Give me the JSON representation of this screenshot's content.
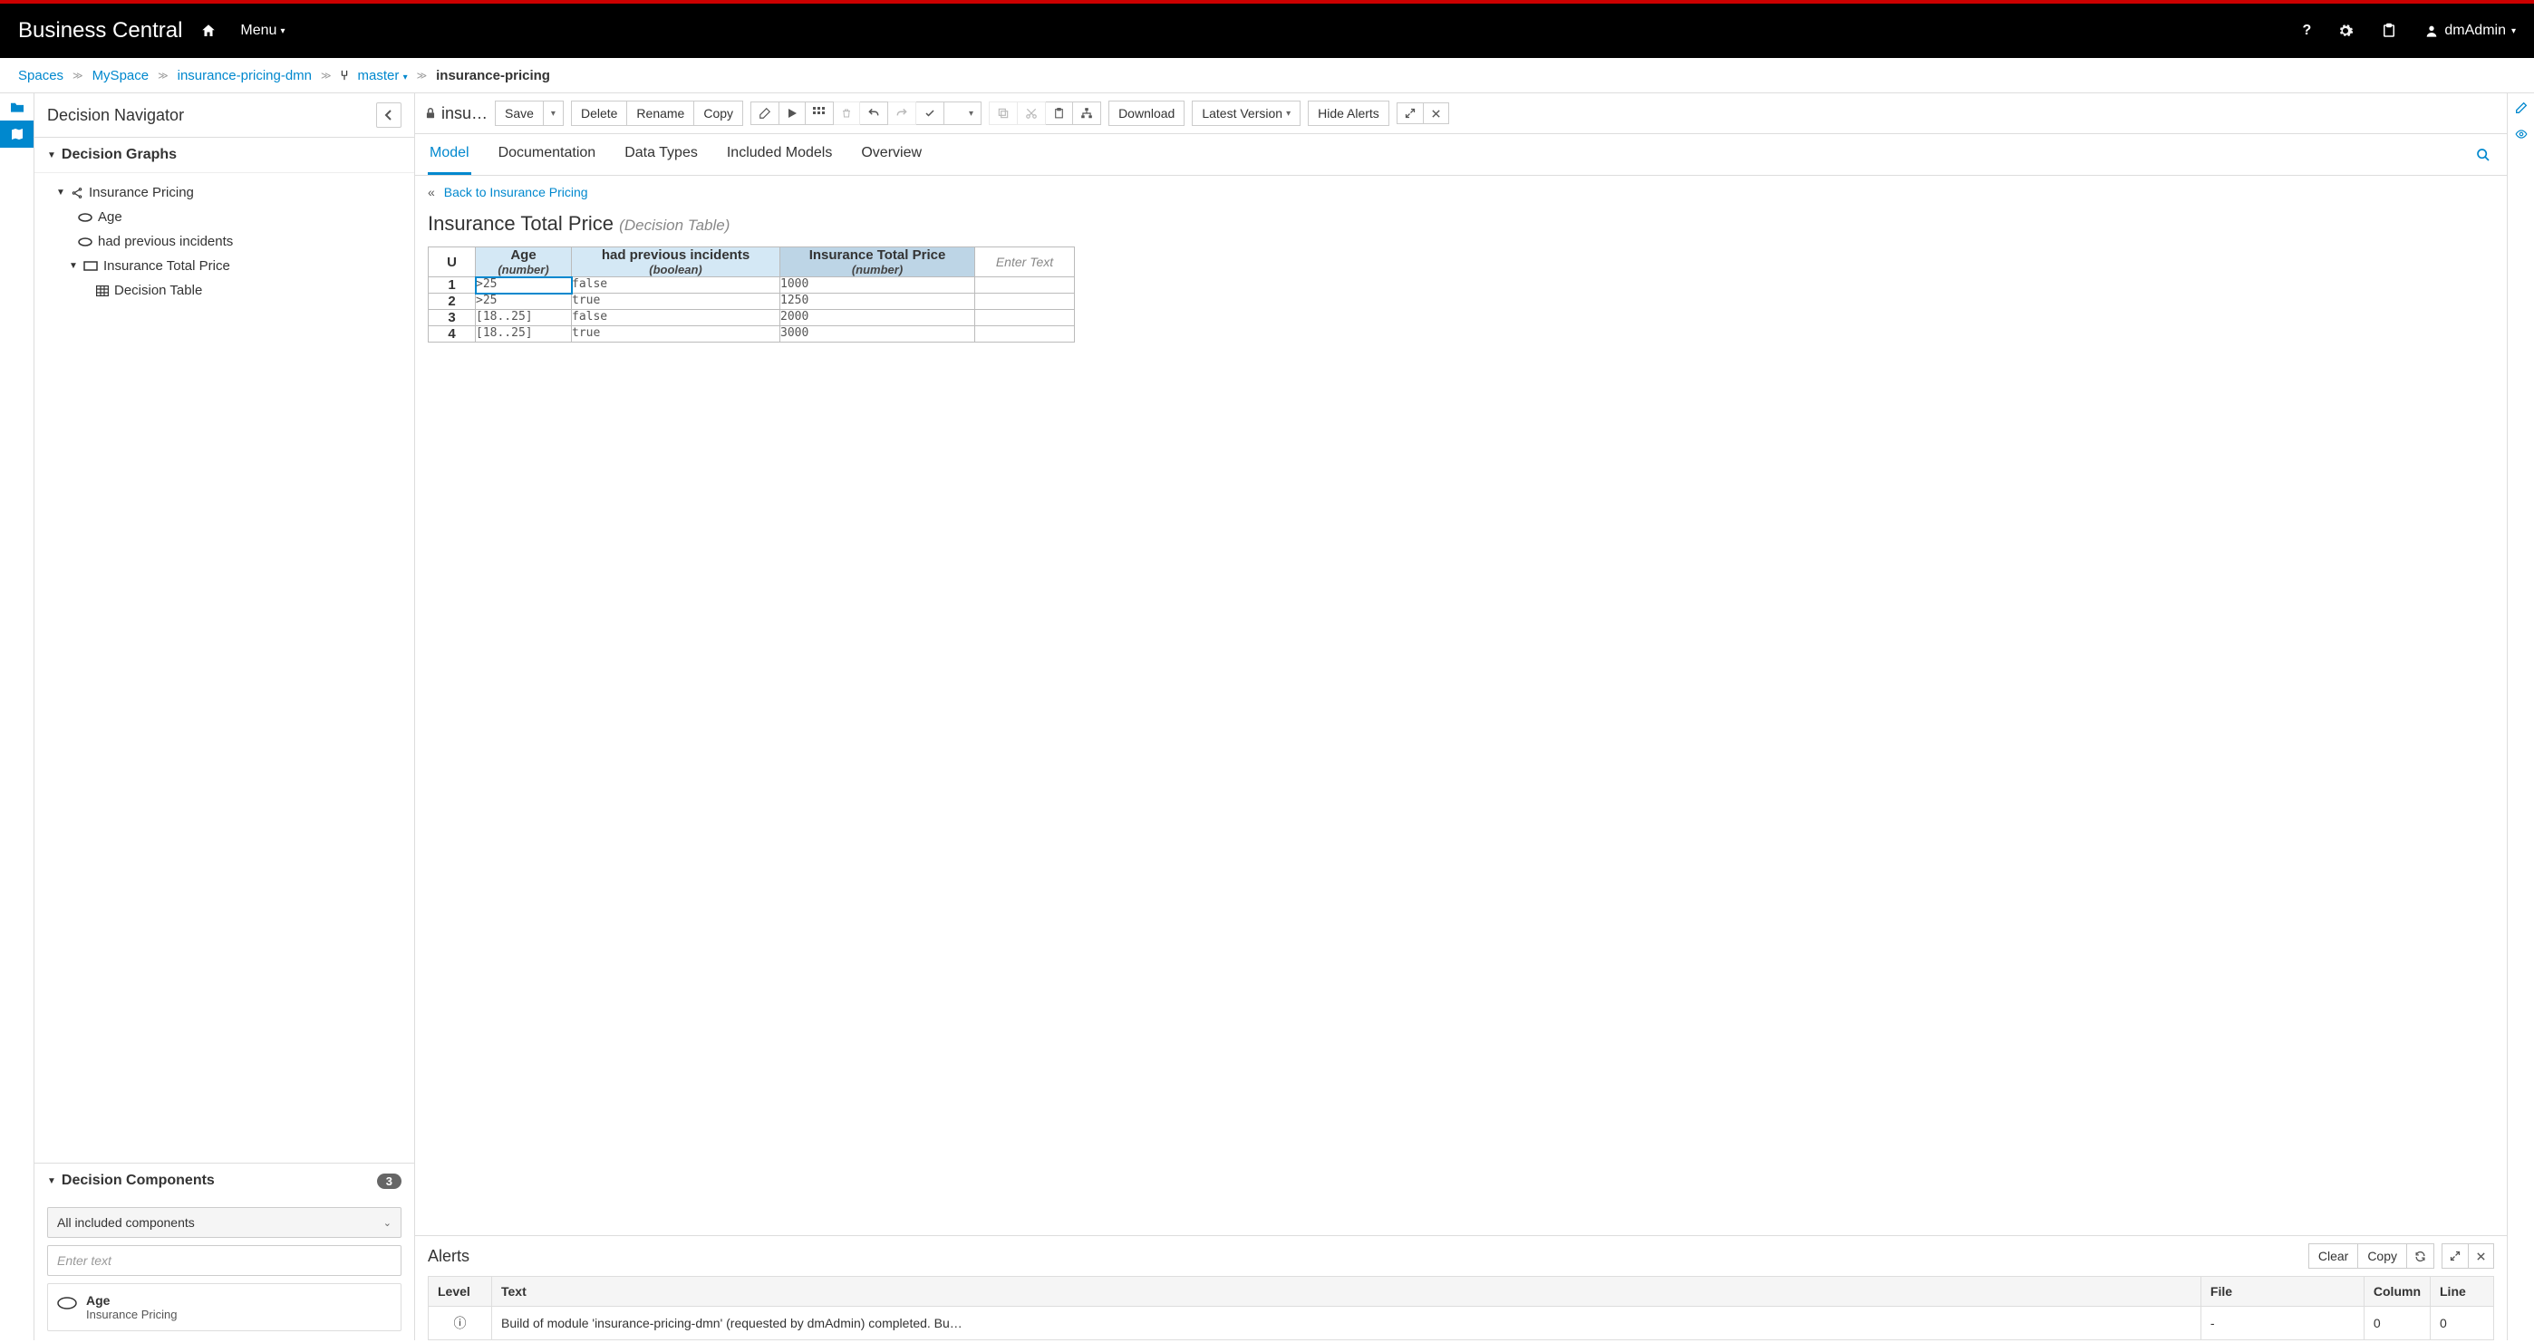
{
  "brand": "Business Central",
  "header": {
    "menu_label": "Menu",
    "user": "dmAdmin"
  },
  "breadcrumb": {
    "spaces": "Spaces",
    "space": "MySpace",
    "project": "insurance-pricing-dmn",
    "branch": "master",
    "current": "insurance-pricing"
  },
  "sidebar": {
    "title": "Decision Navigator",
    "graphs_label": "Decision Graphs",
    "tree": {
      "root": "Insurance Pricing",
      "age": "Age",
      "incidents": "had previous incidents",
      "total": "Insurance Total Price",
      "dtable": "Decision Table"
    },
    "components": {
      "label": "Decision Components",
      "count": "3",
      "filter_label": "All included components",
      "filter_placeholder": "Enter text",
      "card1_title": "Age",
      "card1_sub": "Insurance Pricing"
    }
  },
  "toolbar": {
    "file": "insu…",
    "save": "Save",
    "delete": "Delete",
    "rename": "Rename",
    "copy": "Copy",
    "download": "Download",
    "latest": "Latest Version",
    "hide_alerts": "Hide Alerts"
  },
  "tabs": {
    "model": "Model",
    "documentation": "Documentation",
    "data_types": "Data Types",
    "included": "Included Models",
    "overview": "Overview"
  },
  "back_link": "Back to Insurance Pricing",
  "table": {
    "title": "Insurance Total Price",
    "subtype": "(Decision Table)",
    "hit_policy": "U",
    "columns": {
      "in1_name": "Age",
      "in1_type": "(number)",
      "in2_name": "had previous incidents",
      "in2_type": "(boolean)",
      "out_name": "Insurance Total Price",
      "out_type": "(number)",
      "ann": "Enter Text"
    },
    "rows": [
      {
        "n": "1",
        "age": ">25",
        "incidents": "false",
        "price": "1000",
        "ann": ""
      },
      {
        "n": "2",
        "age": ">25",
        "incidents": "true",
        "price": "1250",
        "ann": ""
      },
      {
        "n": "3",
        "age": "[18..25]",
        "incidents": "false",
        "price": "2000",
        "ann": ""
      },
      {
        "n": "4",
        "age": "[18..25]",
        "incidents": "true",
        "price": "3000",
        "ann": ""
      }
    ]
  },
  "alerts": {
    "title": "Alerts",
    "clear": "Clear",
    "copy": "Copy",
    "columns": {
      "level": "Level",
      "text": "Text",
      "file": "File",
      "column": "Column",
      "line": "Line"
    },
    "rows": [
      {
        "level": "info",
        "text": "Build of module 'insurance-pricing-dmn' (requested by dmAdmin) completed. Bu…",
        "file": "-",
        "column": "0",
        "line": "0"
      }
    ]
  }
}
